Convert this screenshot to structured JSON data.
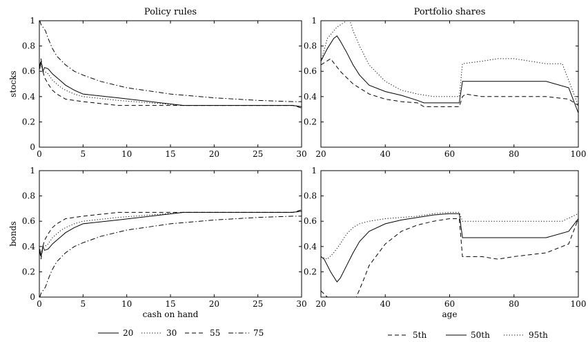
{
  "chart_data": [
    {
      "type": "line",
      "title": "Policy rules",
      "xlabel": "",
      "ylabel": "stocks",
      "xlim": [
        0,
        30
      ],
      "ylim": [
        0,
        1
      ],
      "xticks": [
        0,
        5,
        10,
        15,
        20,
        25,
        30
      ],
      "yticks": [
        0,
        0.2,
        0.4,
        0.6,
        0.8,
        1
      ],
      "series": [
        {
          "name": "20",
          "style": "solid",
          "x": [
            0.05,
            0.2,
            0.4,
            0.6,
            1,
            1.5,
            2,
            2.5,
            3,
            4,
            5,
            9,
            16.5,
            29,
            30
          ],
          "y": [
            0.62,
            0.68,
            0.6,
            0.63,
            0.62,
            0.58,
            0.55,
            0.52,
            0.49,
            0.45,
            0.42,
            0.39,
            0.33,
            0.33,
            0.32
          ]
        },
        {
          "name": "30",
          "style": "dotted",
          "x": [
            0.05,
            0.2,
            0.4,
            0.6,
            1,
            1.5,
            2,
            2.5,
            3,
            4,
            5,
            9,
            16.5,
            29,
            30
          ],
          "y": [
            0.62,
            0.66,
            0.6,
            0.6,
            0.58,
            0.53,
            0.5,
            0.47,
            0.45,
            0.42,
            0.4,
            0.37,
            0.33,
            0.33,
            0.32
          ]
        },
        {
          "name": "55",
          "style": "dashed",
          "x": [
            0.05,
            0.2,
            0.4,
            0.6,
            1,
            1.5,
            2,
            2.5,
            3,
            4,
            5,
            9,
            16.5,
            29,
            30
          ],
          "y": [
            0.64,
            0.7,
            0.6,
            0.55,
            0.5,
            0.45,
            0.42,
            0.4,
            0.38,
            0.37,
            0.36,
            0.33,
            0.33,
            0.33,
            0.31
          ]
        },
        {
          "name": "75",
          "style": "dashdot",
          "x": [
            0.05,
            0.2,
            0.4,
            0.7,
            1,
            1.5,
            2,
            3,
            4,
            5,
            7,
            10,
            12,
            15,
            20,
            25,
            29,
            30
          ],
          "y": [
            1.0,
            0.97,
            0.95,
            0.92,
            0.86,
            0.78,
            0.72,
            0.65,
            0.6,
            0.57,
            0.52,
            0.47,
            0.45,
            0.42,
            0.39,
            0.37,
            0.36,
            0.36
          ]
        }
      ]
    },
    {
      "type": "line",
      "title": "Portfolio shares",
      "xlabel": "",
      "ylabel": "",
      "xlim": [
        20,
        100
      ],
      "ylim": [
        0,
        1
      ],
      "xticks": [
        20,
        40,
        60,
        80,
        100
      ],
      "yticks": [
        0.2,
        0.4,
        0.6,
        0.8,
        1
      ],
      "series": [
        {
          "name": "5th",
          "style": "dashed",
          "x": [
            20,
            23,
            26,
            30,
            35,
            40,
            45,
            50,
            52,
            60,
            63,
            64,
            65,
            70,
            80,
            90,
            97,
            100
          ],
          "y": [
            0.65,
            0.7,
            0.6,
            0.5,
            0.42,
            0.38,
            0.36,
            0.35,
            0.32,
            0.32,
            0.32,
            0.4,
            0.42,
            0.4,
            0.4,
            0.4,
            0.38,
            0.33
          ]
        },
        {
          "name": "50th",
          "style": "solid",
          "x": [
            20,
            22,
            24,
            25,
            26,
            28,
            30,
            32,
            35,
            40,
            45,
            50,
            52,
            60,
            63,
            64,
            70,
            80,
            90,
            97,
            100
          ],
          "y": [
            0.68,
            0.78,
            0.86,
            0.88,
            0.84,
            0.75,
            0.65,
            0.57,
            0.49,
            0.44,
            0.41,
            0.37,
            0.35,
            0.35,
            0.35,
            0.52,
            0.52,
            0.52,
            0.52,
            0.47,
            0.27
          ]
        },
        {
          "name": "95th",
          "style": "dotted",
          "x": [
            20,
            22,
            25,
            28,
            29,
            30,
            32,
            35,
            40,
            45,
            50,
            55,
            60,
            63,
            64,
            70,
            75,
            80,
            90,
            95,
            100
          ],
          "y": [
            0.68,
            0.86,
            0.95,
            1.0,
            1.0,
            0.92,
            0.8,
            0.65,
            0.52,
            0.45,
            0.42,
            0.4,
            0.4,
            0.4,
            0.66,
            0.68,
            0.7,
            0.7,
            0.66,
            0.66,
            0.33
          ]
        }
      ]
    },
    {
      "type": "line",
      "title": "",
      "xlabel": "cash on hand",
      "ylabel": "bonds",
      "xlim": [
        0,
        30
      ],
      "ylim": [
        0,
        1
      ],
      "xticks": [
        0,
        5,
        10,
        15,
        20,
        25,
        30
      ],
      "yticks": [
        0,
        0.2,
        0.4,
        0.6,
        0.8,
        1
      ],
      "series": [
        {
          "name": "20",
          "style": "solid",
          "x": [
            0.05,
            0.2,
            0.4,
            0.6,
            1,
            1.5,
            2,
            2.5,
            3,
            4,
            5,
            9,
            16.5,
            29,
            30
          ],
          "y": [
            0.38,
            0.32,
            0.4,
            0.37,
            0.38,
            0.42,
            0.45,
            0.48,
            0.51,
            0.55,
            0.58,
            0.61,
            0.67,
            0.67,
            0.68
          ]
        },
        {
          "name": "30",
          "style": "dotted",
          "x": [
            0.05,
            0.2,
            0.4,
            0.6,
            1,
            1.5,
            2,
            2.5,
            3,
            4,
            5,
            9,
            16.5,
            29,
            30
          ],
          "y": [
            0.38,
            0.34,
            0.4,
            0.4,
            0.42,
            0.47,
            0.5,
            0.53,
            0.55,
            0.58,
            0.6,
            0.63,
            0.67,
            0.67,
            0.68
          ]
        },
        {
          "name": "55",
          "style": "dashed",
          "x": [
            0.05,
            0.2,
            0.4,
            0.6,
            1,
            1.5,
            2,
            2.5,
            3,
            4,
            5,
            9,
            16.5,
            29,
            30
          ],
          "y": [
            0.36,
            0.3,
            0.4,
            0.45,
            0.5,
            0.55,
            0.58,
            0.6,
            0.62,
            0.63,
            0.64,
            0.67,
            0.67,
            0.67,
            0.69
          ]
        },
        {
          "name": "75",
          "style": "dashdot",
          "x": [
            0.05,
            0.2,
            0.4,
            0.7,
            1,
            1.5,
            2,
            3,
            4,
            5,
            7,
            10,
            12,
            15,
            20,
            25,
            29,
            30
          ],
          "y": [
            0.0,
            0.03,
            0.05,
            0.08,
            0.14,
            0.22,
            0.28,
            0.35,
            0.4,
            0.43,
            0.48,
            0.53,
            0.55,
            0.58,
            0.61,
            0.63,
            0.64,
            0.64
          ]
        }
      ]
    },
    {
      "type": "line",
      "title": "",
      "xlabel": "age",
      "ylabel": "",
      "xlim": [
        20,
        100
      ],
      "ylim": [
        0,
        1
      ],
      "xticks": [
        20,
        40,
        60,
        80,
        100
      ],
      "yticks": [
        0.2,
        0.4,
        0.6,
        0.8,
        1
      ],
      "series": [
        {
          "name": "5th",
          "style": "dashed",
          "x": [
            20,
            22,
            24,
            26,
            28,
            30,
            31,
            33,
            35,
            40,
            45,
            50,
            55,
            60,
            63,
            64,
            70,
            75,
            80,
            90,
            97,
            100
          ],
          "y": [
            0.05,
            0.0,
            0.0,
            0.0,
            0.0,
            0.0,
            0.0,
            0.12,
            0.25,
            0.42,
            0.52,
            0.57,
            0.6,
            0.62,
            0.62,
            0.32,
            0.32,
            0.3,
            0.32,
            0.35,
            0.42,
            0.62
          ]
        },
        {
          "name": "50th",
          "style": "solid",
          "x": [
            20,
            21,
            23,
            25,
            26,
            28,
            30,
            32,
            35,
            40,
            45,
            50,
            55,
            60,
            63,
            64,
            70,
            80,
            90,
            97,
            100
          ],
          "y": [
            0.32,
            0.3,
            0.2,
            0.12,
            0.15,
            0.25,
            0.35,
            0.44,
            0.52,
            0.58,
            0.61,
            0.63,
            0.65,
            0.66,
            0.66,
            0.47,
            0.47,
            0.47,
            0.47,
            0.52,
            0.62
          ]
        },
        {
          "name": "95th",
          "style": "dotted",
          "x": [
            20,
            22,
            24,
            26,
            28,
            30,
            32,
            35,
            40,
            45,
            50,
            55,
            60,
            63,
            64,
            70,
            80,
            90,
            95,
            100
          ],
          "y": [
            0.32,
            0.3,
            0.35,
            0.42,
            0.5,
            0.55,
            0.58,
            0.6,
            0.62,
            0.63,
            0.64,
            0.66,
            0.67,
            0.67,
            0.6,
            0.6,
            0.6,
            0.6,
            0.6,
            0.66
          ]
        }
      ]
    }
  ],
  "legends": {
    "policy": [
      {
        "label": "20",
        "style": "solid"
      },
      {
        "label": "30",
        "style": "dotted"
      },
      {
        "label": "55",
        "style": "dashed"
      },
      {
        "label": "75",
        "style": "dashdot"
      }
    ],
    "shares": [
      {
        "label": "5th",
        "style": "dashed"
      },
      {
        "label": "50th",
        "style": "solid"
      },
      {
        "label": "95th",
        "style": "dotted"
      }
    ]
  }
}
